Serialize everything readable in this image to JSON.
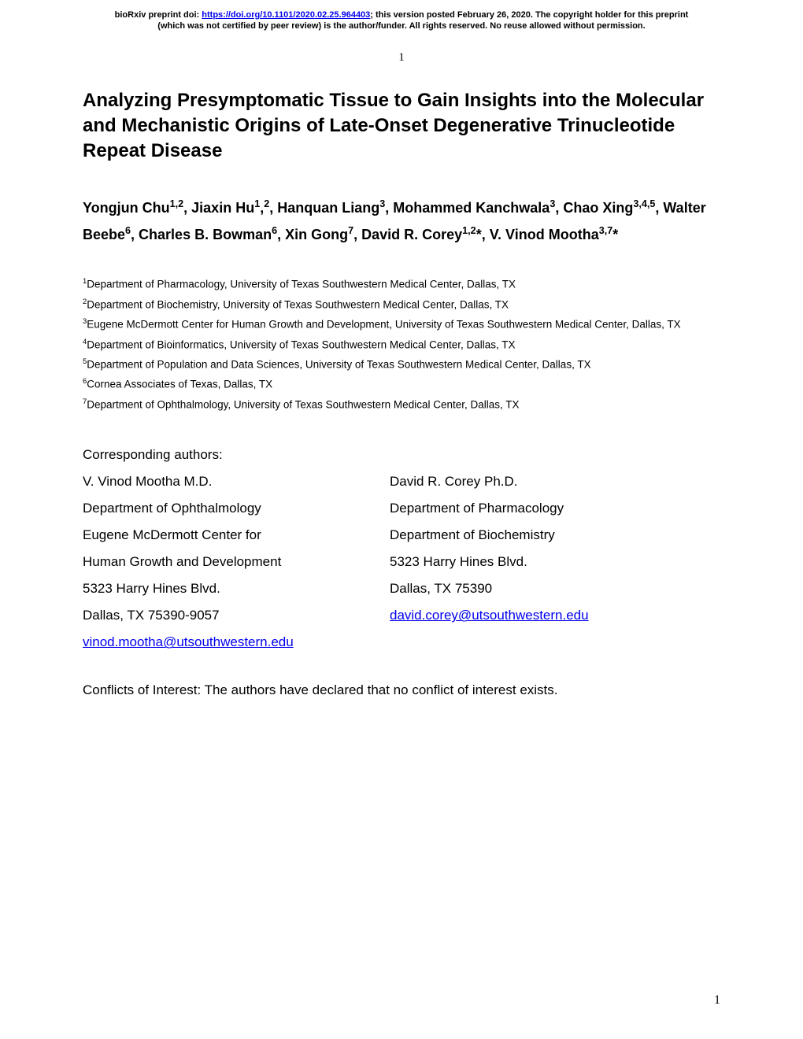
{
  "preprint": {
    "line1_pre": "bioRxiv preprint doi: ",
    "doi_url": "https://doi.org/10.1101/2020.02.25.964403",
    "line1_post": "; this version posted February 26, 2020. The copyright holder for this preprint",
    "line2": "(which was not certified by peer review) is the author/funder. All rights reserved. No reuse allowed without permission."
  },
  "page_number_top": "1",
  "page_number_bottom": "1",
  "title": "Analyzing Presymptomatic Tissue to Gain Insights into the Molecular and Mechanistic Origins of Late-Onset Degenerative Trinucleotide Repeat Disease",
  "authors": {
    "a1_name": "Yongjun Chu",
    "a1_sup": "1,2",
    "a2_name": ", Jiaxin Hu",
    "a2_sup1": "1",
    "a2_comma": ",",
    "a2_sup2": "2",
    "a3_name": ", Hanquan Liang",
    "a3_sup": "3",
    "a4_name": ", Mohammed Kanchwala",
    "a4_sup": "3",
    "a5_name": ", Chao Xing",
    "a5_sup": "3,4,5",
    "a6_name": ", Walter Beebe",
    "a6_sup": "6",
    "a7_name": ", Charles B. Bowman",
    "a7_sup": "6",
    "a8_name": ", Xin Gong",
    "a8_sup": "7",
    "a9_name": ", David R. Corey",
    "a9_sup": "1,2",
    "a9_star": "*",
    "a10_name": ", V. Vinod Mootha",
    "a10_sup": "3,7",
    "a10_star": "*"
  },
  "affiliations": {
    "af1_sup": "1",
    "af1_text": "Department of Pharmacology, University of Texas Southwestern Medical Center, Dallas, TX",
    "af2_sup": "2",
    "af2_text": "Department of Biochemistry, University of Texas Southwestern Medical Center, Dallas, TX",
    "af3_sup": "3",
    "af3_text": "Eugene McDermott Center for Human Growth and Development, University of Texas Southwestern Medical Center, Dallas, TX",
    "af4_sup": "4",
    "af4_text": "Department of Bioinformatics, University of Texas Southwestern Medical Center, Dallas, TX",
    "af5_sup": "5",
    "af5_text": "Department of Population and Data Sciences, University of Texas Southwestern Medical Center, Dallas, TX",
    "af6_sup": "6",
    "af6_text": "Cornea Associates of Texas, Dallas, TX",
    "af7_sup": "7",
    "af7_text": "Department of Ophthalmology, University of Texas Southwestern Medical Center, Dallas, TX"
  },
  "corresponding": {
    "label": "Corresponding authors:",
    "col1": {
      "l1": "V. Vinod Mootha M.D.",
      "l2": "Department of Ophthalmology",
      "l3": "Eugene McDermott Center for",
      "l4": "Human Growth and Development",
      "l5": "5323 Harry Hines Blvd.",
      "l6": "Dallas, TX 75390-9057",
      "email": "vinod.mootha@utsouthwestern.edu"
    },
    "col2": {
      "l1": "David R. Corey Ph.D.",
      "l2": "Department of Pharmacology",
      "l3": "Department of Biochemistry",
      "l4": "5323 Harry Hines Blvd.",
      "l5": "Dallas, TX 75390",
      "email": "david.corey@utsouthwestern.edu"
    }
  },
  "conflicts": "Conflicts of Interest: The authors have declared that no conflict of interest exists.",
  "colors": {
    "link": "#0000ee",
    "text": "#000000",
    "background": "#ffffff"
  }
}
